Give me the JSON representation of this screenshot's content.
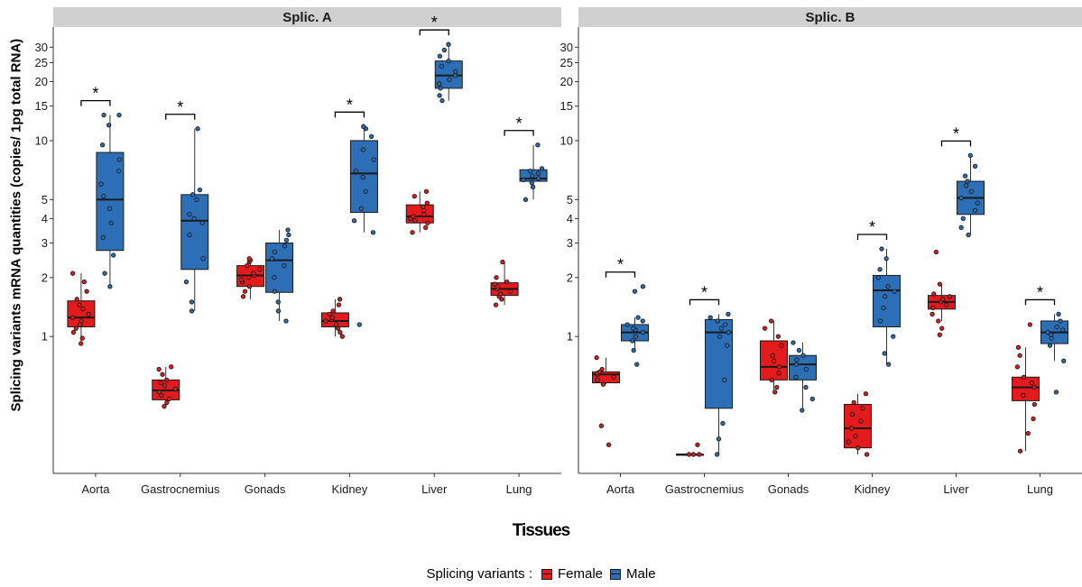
{
  "chart_data": {
    "type": "box",
    "ylabel": "Splicing variants mRNA quantities (copies/ 1pg total RNA)",
    "xlabel": "Tissues",
    "yscale": "log",
    "ylim": [
      0.2,
      38
    ],
    "yticks": [
      "1",
      "2",
      "3",
      "4",
      "5",
      "10",
      "15",
      "20",
      "25",
      "30"
    ],
    "grid": false,
    "legend": {
      "title": "Splicing variants :",
      "position": "bottom",
      "entries": [
        "Female",
        "Male"
      ]
    },
    "colors": {
      "Female": "#e41a1c",
      "Male": "#2c6fb7",
      "strip": "#d0d0d0"
    },
    "significance_marker": "*",
    "categories": [
      "Aorta",
      "Gastrocnemius",
      "Gonads",
      "Kidney",
      "Liver",
      "Lung"
    ],
    "panels": [
      {
        "title": "Splic. A",
        "series": [
          {
            "name": "Female",
            "boxes": [
              {
                "q1": 1.12,
                "median": 1.25,
                "q3": 1.52,
                "wlo": 0.92,
                "whi": 2.1,
                "points": [
                  0.92,
                  0.98,
                  1.05,
                  1.1,
                  1.15,
                  1.2,
                  1.25,
                  1.3,
                  1.38,
                  1.45,
                  1.55,
                  1.7,
                  1.9,
                  2.1
                ]
              },
              {
                "q1": 0.475,
                "median": 0.53,
                "q3": 0.6,
                "wlo": 0.44,
                "whi": 0.7,
                "points": [
                  0.44,
                  0.46,
                  0.48,
                  0.5,
                  0.52,
                  0.54,
                  0.56,
                  0.58,
                  0.6,
                  0.64,
                  0.68,
                  0.7
                ]
              },
              {
                "q1": 1.8,
                "median": 2.05,
                "q3": 2.3,
                "wlo": 1.55,
                "whi": 2.5,
                "points": [
                  1.6,
                  1.7,
                  1.8,
                  1.9,
                  1.95,
                  2.0,
                  2.05,
                  2.1,
                  2.2,
                  2.3,
                  2.4,
                  2.45,
                  2.5
                ]
              },
              {
                "q1": 1.12,
                "median": 1.2,
                "q3": 1.32,
                "wlo": 1.0,
                "whi": 1.55,
                "points": [
                  1.0,
                  1.05,
                  1.1,
                  1.15,
                  1.2,
                  1.22,
                  1.25,
                  1.3,
                  1.35,
                  1.45,
                  1.55
                ]
              },
              {
                "q1": 3.8,
                "median": 4.1,
                "q3": 4.7,
                "wlo": 3.4,
                "whi": 5.5,
                "points": [
                  3.4,
                  3.6,
                  3.8,
                  3.9,
                  4.0,
                  4.1,
                  4.2,
                  4.4,
                  4.6,
                  4.8,
                  5.2,
                  5.5
                ]
              },
              {
                "q1": 1.62,
                "median": 1.75,
                "q3": 1.88,
                "wlo": 1.45,
                "whi": 2.4,
                "points": [
                  1.45,
                  1.55,
                  1.6,
                  1.65,
                  1.7,
                  1.75,
                  1.8,
                  1.85,
                  1.9,
                  2.0,
                  2.4
                ]
              }
            ]
          },
          {
            "name": "Male",
            "boxes": [
              {
                "q1": 2.75,
                "median": 5.0,
                "q3": 8.7,
                "wlo": 1.8,
                "whi": 13.5,
                "points": [
                  1.8,
                  2.1,
                  2.6,
                  3.2,
                  3.8,
                  4.5,
                  5.2,
                  6.0,
                  7.0,
                  8.0,
                  9.5,
                  12.0,
                  13.5,
                  13.5
                ]
              },
              {
                "q1": 2.2,
                "median": 3.9,
                "q3": 5.3,
                "wlo": 1.35,
                "whi": 11.5,
                "points": [
                  1.35,
                  1.5,
                  1.9,
                  2.5,
                  3.3,
                  3.8,
                  4.0,
                  4.2,
                  5.0,
                  5.3,
                  5.6,
                  11.5
                ]
              },
              {
                "q1": 1.68,
                "median": 2.45,
                "q3": 3.0,
                "wlo": 1.2,
                "whi": 3.5,
                "points": [
                  1.2,
                  1.35,
                  1.5,
                  1.7,
                  2.0,
                  2.3,
                  2.5,
                  2.7,
                  2.9,
                  3.1,
                  3.3,
                  3.5
                ]
              },
              {
                "q1": 4.3,
                "median": 6.8,
                "q3": 10.0,
                "wlo": 3.4,
                "whi": 11.8,
                "points": [
                  1.15,
                  3.4,
                  3.9,
                  4.5,
                  5.5,
                  6.5,
                  7.0,
                  8.0,
                  9.0,
                  10.5,
                  11.5,
                  11.8
                ]
              },
              {
                "q1": 18.5,
                "median": 21.5,
                "q3": 25.5,
                "wlo": 16.0,
                "whi": 31.0,
                "points": [
                  16.0,
                  17.0,
                  18.5,
                  19.5,
                  20.5,
                  21.5,
                  22.5,
                  24.0,
                  25.5,
                  27.0,
                  29.0,
                  31.0
                ]
              },
              {
                "q1": 6.2,
                "median": 6.4,
                "q3": 7.1,
                "wlo": 5.0,
                "whi": 9.5,
                "points": [
                  5.0,
                  5.8,
                  6.1,
                  6.3,
                  6.4,
                  6.6,
                  6.8,
                  7.0,
                  7.2,
                  9.5
                ]
              }
            ]
          }
        ],
        "significant": [
          "Aorta",
          "Gastrocnemius",
          "Kidney",
          "Liver",
          "Lung"
        ]
      },
      {
        "title": "Splic. B",
        "series": [
          {
            "name": "Female",
            "boxes": [
              {
                "q1": 0.58,
                "median": 0.64,
                "q3": 0.66,
                "wlo": 0.57,
                "whi": 0.78,
                "points": [
                  0.28,
                  0.35,
                  0.57,
                  0.6,
                  0.62,
                  0.64,
                  0.65,
                  0.66,
                  0.68,
                  0.78
                ]
              },
              {
                "q1": 0.25,
                "median": 0.25,
                "q3": 0.25,
                "wlo": 0.25,
                "whi": 0.25,
                "points": [
                  0.25,
                  0.25,
                  0.25,
                  0.28
                ]
              },
              {
                "q1": 0.6,
                "median": 0.7,
                "q3": 0.95,
                "wlo": 0.52,
                "whi": 1.2,
                "points": [
                  0.52,
                  0.55,
                  0.6,
                  0.65,
                  0.7,
                  0.75,
                  0.8,
                  0.9,
                  1.0,
                  1.1,
                  1.2
                ]
              },
              {
                "q1": 0.27,
                "median": 0.34,
                "q3": 0.45,
                "wlo": 0.25,
                "whi": 0.51,
                "points": [
                  0.25,
                  0.27,
                  0.29,
                  0.31,
                  0.34,
                  0.37,
                  0.4,
                  0.43,
                  0.46,
                  0.51
                ]
              },
              {
                "q1": 1.38,
                "median": 1.5,
                "q3": 1.62,
                "wlo": 1.2,
                "whi": 1.85,
                "points": [
                  1.02,
                  1.1,
                  1.2,
                  1.3,
                  1.4,
                  1.45,
                  1.5,
                  1.55,
                  1.6,
                  1.65,
                  1.85,
                  2.7
                ]
              },
              {
                "q1": 0.47,
                "median": 0.55,
                "q3": 0.62,
                "wlo": 0.26,
                "whi": 0.88,
                "points": [
                  0.26,
                  0.32,
                  0.38,
                  0.45,
                  0.5,
                  0.55,
                  0.58,
                  0.62,
                  0.7,
                  0.8,
                  0.88,
                  1.15
                ]
              }
            ]
          },
          {
            "name": "Male",
            "boxes": [
              {
                "q1": 0.95,
                "median": 1.05,
                "q3": 1.15,
                "wlo": 0.85,
                "whi": 1.25,
                "points": [
                  0.72,
                  0.85,
                  0.95,
                  1.0,
                  1.05,
                  1.08,
                  1.1,
                  1.15,
                  1.2,
                  1.25,
                  1.7,
                  1.8
                ]
              },
              {
                "q1": 0.43,
                "median": 1.05,
                "q3": 1.22,
                "wlo": 0.25,
                "whi": 1.3,
                "points": [
                  0.25,
                  0.3,
                  0.36,
                  0.6,
                  0.9,
                  1.0,
                  1.05,
                  1.1,
                  1.15,
                  1.2,
                  1.25,
                  1.3
                ]
              },
              {
                "q1": 0.6,
                "median": 0.72,
                "q3": 0.8,
                "wlo": 0.42,
                "whi": 0.93,
                "points": [
                  0.42,
                  0.48,
                  0.55,
                  0.62,
                  0.68,
                  0.72,
                  0.76,
                  0.8,
                  0.85,
                  0.93
                ]
              },
              {
                "q1": 1.12,
                "median": 1.72,
                "q3": 2.05,
                "wlo": 0.72,
                "whi": 2.8,
                "points": [
                  0.72,
                  0.82,
                  1.0,
                  1.2,
                  1.4,
                  1.6,
                  1.7,
                  1.8,
                  2.0,
                  2.2,
                  2.5,
                  2.8
                ]
              },
              {
                "q1": 4.2,
                "median": 5.1,
                "q3": 6.2,
                "wlo": 3.3,
                "whi": 8.4,
                "points": [
                  3.3,
                  3.6,
                  4.0,
                  4.4,
                  4.8,
                  5.1,
                  5.5,
                  5.9,
                  6.2,
                  6.6,
                  7.4,
                  8.4
                ]
              },
              {
                "q1": 0.92,
                "median": 1.05,
                "q3": 1.2,
                "wlo": 0.75,
                "whi": 1.3,
                "points": [
                  0.52,
                  0.75,
                  0.9,
                  0.98,
                  1.02,
                  1.05,
                  1.08,
                  1.12,
                  1.2,
                  1.3
                ]
              }
            ]
          }
        ],
        "significant": [
          "Aorta",
          "Gastrocnemius",
          "Kidney",
          "Liver",
          "Lung"
        ]
      }
    ]
  }
}
